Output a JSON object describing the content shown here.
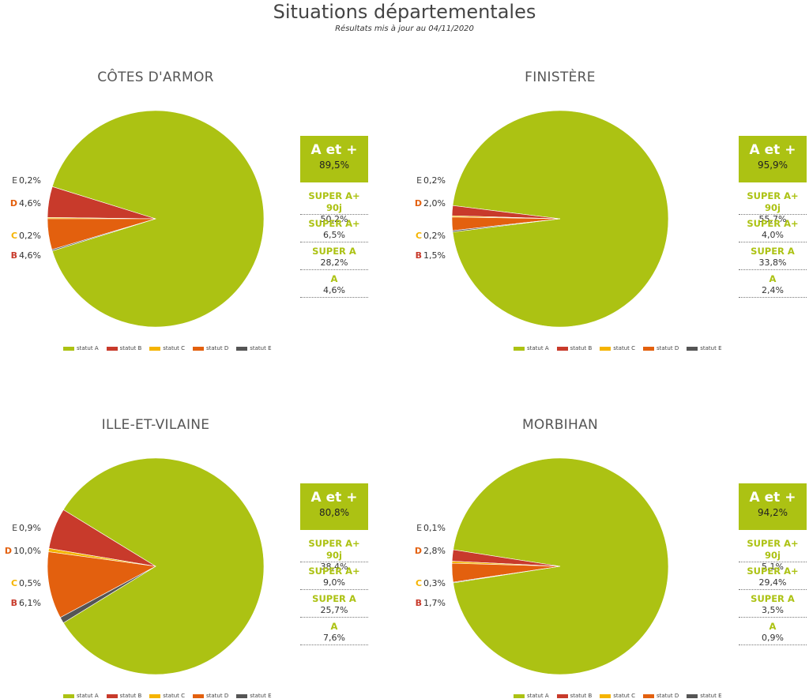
{
  "header": {
    "title": "Situations départementales",
    "subtitle": "Résultats mis à jour au 04/11/2020"
  },
  "colors": {
    "statut A": "#acc213",
    "statut B": "#c83a2b",
    "statut C": "#f5b400",
    "statut D": "#e3600e",
    "statut E": "#555555"
  },
  "chart_data": [
    {
      "type": "pie",
      "title": "CÔTES D'ARMOR",
      "legend": [
        "statut A",
        "statut B",
        "statut C",
        "statut D",
        "statut E"
      ],
      "slices": [
        {
          "letter": "A",
          "name": "statut A",
          "value": 90.4,
          "label": ""
        },
        {
          "letter": "B",
          "name": "statut B",
          "value": 4.6,
          "label": "4,6%"
        },
        {
          "letter": "C",
          "name": "statut C",
          "value": 0.2,
          "label": "0,2%"
        },
        {
          "letter": "D",
          "name": "statut D",
          "value": 4.6,
          "label": "4,6%"
        },
        {
          "letter": "E",
          "name": "statut E",
          "value": 0.2,
          "label": "0,2%"
        }
      ],
      "stats": {
        "box_label": "A et +",
        "box_value": "89,5%",
        "rows": [
          {
            "label": "SUPER A+ 90j",
            "value": "50,2%"
          },
          {
            "label": "SUPER A+",
            "value": "6,5%"
          },
          {
            "label": "SUPER A",
            "value": "28,2%"
          },
          {
            "label": "A",
            "value": "4,6%"
          }
        ]
      }
    },
    {
      "type": "pie",
      "title": "FINISTÈRE",
      "legend": [
        "statut A",
        "statut B",
        "statut C",
        "statut D",
        "statut E"
      ],
      "slices": [
        {
          "letter": "A",
          "name": "statut A",
          "value": 96.1,
          "label": ""
        },
        {
          "letter": "B",
          "name": "statut B",
          "value": 1.5,
          "label": "1,5%"
        },
        {
          "letter": "C",
          "name": "statut C",
          "value": 0.2,
          "label": "0,2%"
        },
        {
          "letter": "D",
          "name": "statut D",
          "value": 2.0,
          "label": "2,0%"
        },
        {
          "letter": "E",
          "name": "statut E",
          "value": 0.2,
          "label": "0,2%"
        }
      ],
      "stats": {
        "box_label": "A et +",
        "box_value": "95,9%",
        "rows": [
          {
            "label": "SUPER A+ 90j",
            "value": "55,7%"
          },
          {
            "label": "SUPER A+",
            "value": "4,0%"
          },
          {
            "label": "SUPER A",
            "value": "33,8%"
          },
          {
            "label": "A",
            "value": "2,4%"
          }
        ]
      }
    },
    {
      "type": "pie",
      "title": "ILLE-ET-VILAINE",
      "legend": [
        "statut A",
        "statut B",
        "statut C",
        "statut D",
        "statut E"
      ],
      "slices": [
        {
          "letter": "A",
          "name": "statut A",
          "value": 82.5,
          "label": ""
        },
        {
          "letter": "B",
          "name": "statut B",
          "value": 6.1,
          "label": "6,1%"
        },
        {
          "letter": "C",
          "name": "statut C",
          "value": 0.5,
          "label": "0,5%"
        },
        {
          "letter": "D",
          "name": "statut D",
          "value": 10.0,
          "label": "10,0%"
        },
        {
          "letter": "E",
          "name": "statut E",
          "value": 0.9,
          "label": "0,9%"
        }
      ],
      "stats": {
        "box_label": "A et +",
        "box_value": "80,8%",
        "rows": [
          {
            "label": "SUPER A+ 90j",
            "value": "38,4%"
          },
          {
            "label": "SUPER A+",
            "value": "9,0%"
          },
          {
            "label": "SUPER A",
            "value": "25,7%"
          },
          {
            "label": "A",
            "value": "7,6%"
          }
        ]
      }
    },
    {
      "type": "pie",
      "title": "MORBIHAN",
      "legend": [
        "statut A",
        "statut B",
        "statut C",
        "statut D",
        "statut E"
      ],
      "slices": [
        {
          "letter": "A",
          "name": "statut A",
          "value": 95.1,
          "label": ""
        },
        {
          "letter": "B",
          "name": "statut B",
          "value": 1.7,
          "label": "1,7%"
        },
        {
          "letter": "C",
          "name": "statut C",
          "value": 0.3,
          "label": "0,3%"
        },
        {
          "letter": "D",
          "name": "statut D",
          "value": 2.8,
          "label": "2,8%"
        },
        {
          "letter": "E",
          "name": "statut E",
          "value": 0.1,
          "label": "0,1%"
        }
      ],
      "stats": {
        "box_label": "A et +",
        "box_value": "94,2%",
        "rows": [
          {
            "label": "SUPER A+ 90j",
            "value": "5,1%"
          },
          {
            "label": "SUPER A+",
            "value": "29,4%"
          },
          {
            "label": "SUPER A",
            "value": "3,5%"
          },
          {
            "label": "A",
            "value": "0,9%"
          }
        ]
      }
    }
  ]
}
